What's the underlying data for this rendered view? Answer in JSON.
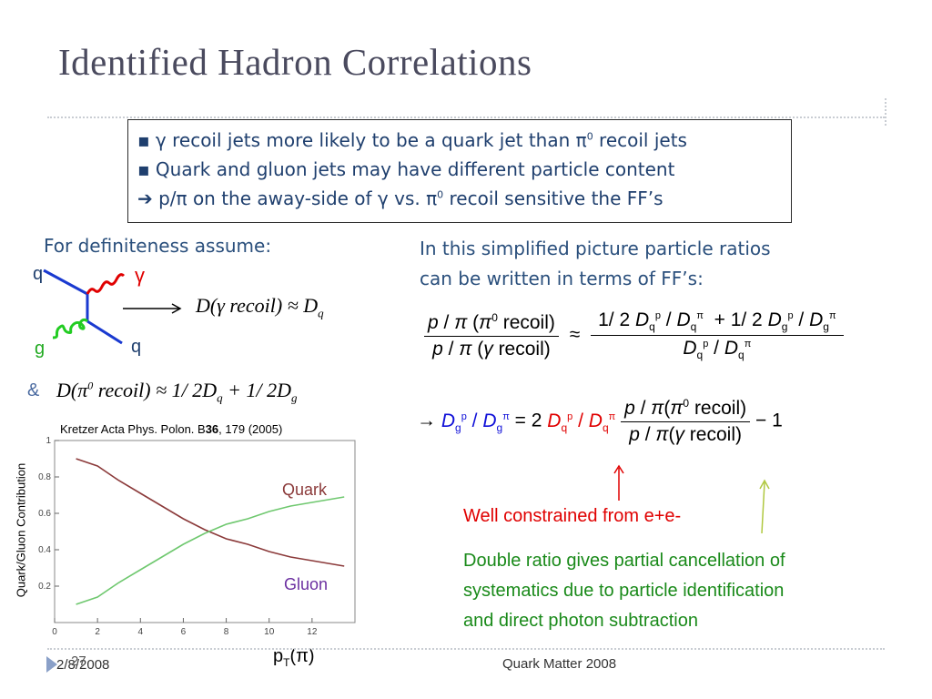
{
  "title": "Identified Hadron Correlations",
  "box": {
    "line1_pre": "▪ γ recoil jets more likely to be a quark jet than π",
    "line1_sup": "0",
    "line1_post": " recoil jets",
    "line2": "▪ Quark and gluon jets may have different particle content",
    "line3_pre": "➔ p/π on the away-side of γ vs. π",
    "line3_sup": "0",
    "line3_post": " recoil sensitive the FF’s"
  },
  "left": {
    "assume": "For definiteness assume:",
    "diagram": {
      "q_top": "q",
      "gamma": "γ",
      "g": "g",
      "q_bottom": "q"
    },
    "eq1": "D(γ recoil) ≈ D",
    "eq1_sub": "q",
    "amp": "&",
    "eq2_pre": "D(π",
    "eq2_sup": "0",
    "eq2_post": " recoil) ≈ 1/ 2D",
    "eq2_sub1": "q",
    "eq2_mid": " + 1/ 2D",
    "eq2_sub2": "g",
    "ref_pre": "Kretzer Acta Phys. Polon. B",
    "ref_bold": "36",
    "ref_post": ", 179 (2005)"
  },
  "right": {
    "intro_line1": "In this simplified picture particle ratios",
    "intro_line2": "can be written in terms of FF’s:",
    "eq_a_num": "p / π (π⁰ recoil)",
    "eq_a_den": "p / π (γ recoil)",
    "approx": "≈",
    "eq_b_num": "1/ 2 Dqᵖ / Dqᵖⁱ + 1/ 2 Dgᵖ / Dgᵖⁱ",
    "eq_b_den": "Dqᵖ / Dqᵖⁱ",
    "arrow": "→",
    "eq_c_lhs": "Dgᵖ / Dgᵖⁱ",
    "eq_c_eq": "= 2",
    "eq_c_mid": "Dqᵖ / Dqᵖⁱ",
    "eq_c_num": "p / π(π⁰ recoil)",
    "eq_c_den": "p / π(γ recoil)",
    "eq_c_tail": "− 1",
    "well_constrained": "Well constrained from e+e-",
    "double_ratio_1": "Double ratio gives partial cancellation of",
    "double_ratio_2": "systematics due to particle identification",
    "double_ratio_3": "and direct photon subtraction"
  },
  "chart_data": {
    "type": "line",
    "ylabel": "Quark/Gluon Contribution",
    "xlabel": "pT(π)",
    "xlim": [
      0,
      14
    ],
    "ylim": [
      0,
      1
    ],
    "x_ticks": [
      "0",
      "2",
      "4",
      "6",
      "8",
      "10",
      "12"
    ],
    "y_ticks": [
      "0.2",
      "0.4",
      "0.6",
      "0.8",
      "1"
    ],
    "series": [
      {
        "name": "Quark",
        "color": "#8b3a3a",
        "x": [
          1,
          2,
          3,
          4,
          5,
          6,
          7,
          8,
          9,
          10,
          11,
          12,
          13.5
        ],
        "y": [
          0.9,
          0.86,
          0.78,
          0.71,
          0.64,
          0.57,
          0.51,
          0.46,
          0.43,
          0.39,
          0.36,
          0.34,
          0.31
        ]
      },
      {
        "name": "Gluon",
        "color": "#6fc86f",
        "x": [
          1,
          2,
          3,
          4,
          5,
          6,
          7,
          8,
          9,
          10,
          11,
          12,
          13.5
        ],
        "y": [
          0.1,
          0.14,
          0.22,
          0.29,
          0.36,
          0.43,
          0.49,
          0.54,
          0.57,
          0.61,
          0.64,
          0.66,
          0.69
        ]
      }
    ],
    "grid": false
  },
  "footer": {
    "date": "2/8/2008",
    "page": "27",
    "conference": "Quark Matter 2008"
  }
}
